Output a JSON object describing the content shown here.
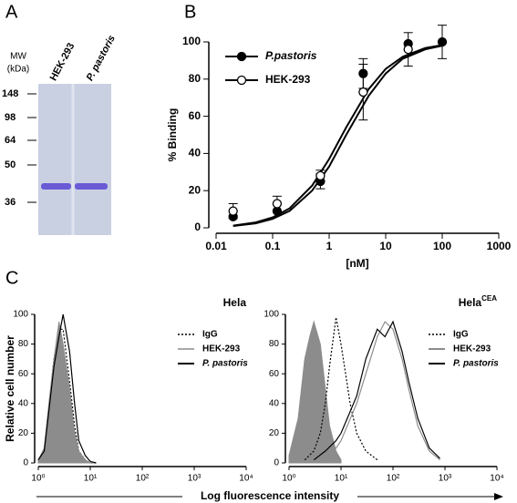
{
  "panel_labels": [
    "A",
    "B",
    "C"
  ],
  "gel": {
    "mw_label": "MW",
    "unit_label": "(kDa)",
    "markers": [
      "148",
      "98",
      "64",
      "50",
      "36"
    ],
    "lanes": [
      "HEK-293",
      "P. pastoris"
    ]
  },
  "shared_x_label": "Log fluorescence intensity",
  "chart_data": [
    {
      "type": "scatter",
      "xscale": "log",
      "xlabel": "[nM]",
      "ylabel": "% Binding",
      "xlim": [
        0.01,
        1000
      ],
      "xticks": [
        0.01,
        0.1,
        1,
        10,
        100,
        1000
      ],
      "ylim": [
        0,
        100
      ],
      "yticks": [
        0,
        20,
        40,
        60,
        80,
        100
      ],
      "legend": "upper left",
      "series": [
        {
          "name": "P.pastoris",
          "italic": true,
          "color": "#000000",
          "marker": "filled",
          "x": [
            0.02,
            0.12,
            0.7,
            4,
            25,
            100
          ],
          "values": [
            6,
            9,
            25,
            83,
            99,
            100
          ],
          "errors": [
            null,
            null,
            4,
            8,
            null,
            9
          ],
          "fit": {
            "x": [
              0.02,
              0.05,
              0.1,
              0.2,
              0.5,
              1,
              2,
              5,
              10,
              20,
              50,
              100
            ],
            "values": [
              1.2,
              2.9,
              5.6,
              10.5,
              22.7,
              37,
              54,
              74.6,
              85.5,
              92,
              96.7,
              98.3
            ]
          }
        },
        {
          "name": "HEK-293",
          "italic": false,
          "color": "#000000",
          "marker": "open",
          "x": [
            0.02,
            0.12,
            0.7,
            4,
            25
          ],
          "values": [
            9,
            13,
            28,
            73,
            96
          ],
          "errors": [
            4,
            4,
            3,
            15,
            9
          ],
          "fit": {
            "x": [
              0.02,
              0.05,
              0.1,
              0.2,
              0.5,
              1,
              2,
              5,
              10,
              20,
              50,
              100
            ],
            "values": [
              1,
              2.4,
              4.8,
              9.1,
              20,
              33,
              50,
              71,
              83,
              91,
              96,
              98
            ]
          }
        }
      ]
    },
    {
      "type": "line",
      "xscale": "log",
      "title": "Hela",
      "ylabel": "Relative cell number",
      "xlim": [
        1,
        10000
      ],
      "xticks": [
        {
          "value": 1,
          "label": "10⁰"
        },
        {
          "value": 10,
          "label": "10¹"
        },
        {
          "value": 100,
          "label": "10²"
        },
        {
          "value": 1000,
          "label": "10³"
        },
        {
          "value": 10000,
          "label": "10⁴"
        }
      ],
      "ylim": [
        0,
        100
      ],
      "yticks": [
        0,
        20,
        40,
        60,
        80,
        100
      ],
      "legend": "upper right",
      "series": [
        {
          "name": "IgG",
          "italic": false,
          "color": "#000000",
          "style": "dotted",
          "x": [
            1,
            1.3,
            1.6,
            2,
            2.5,
            3,
            4,
            5,
            6,
            8,
            10,
            13
          ],
          "values": [
            2,
            9,
            38,
            70,
            90,
            90,
            55,
            25,
            8,
            2,
            0,
            0
          ]
        },
        {
          "name": "HEK-293",
          "italic": false,
          "color": "#8c8c8c",
          "style": "fill",
          "x": [
            1,
            1.3,
            1.6,
            2,
            2.5,
            3,
            4,
            5,
            6,
            8,
            10,
            13
          ],
          "values": [
            2,
            10,
            40,
            70,
            95,
            80,
            50,
            20,
            8,
            2,
            0,
            0
          ]
        },
        {
          "name": "P. pastoris",
          "italic": true,
          "color": "#000000",
          "style": "solid",
          "x": [
            1,
            1.3,
            1.6,
            2,
            2.5,
            3,
            4,
            5,
            6,
            8,
            10,
            13
          ],
          "values": [
            2,
            8,
            35,
            65,
            85,
            100,
            75,
            40,
            15,
            5,
            1,
            0
          ]
        }
      ]
    },
    {
      "type": "line",
      "xscale": "log",
      "title": "Hela",
      "title_sup": "CEA",
      "xlim": [
        1,
        10000
      ],
      "xticks": [
        {
          "value": 1,
          "label": "10⁰"
        },
        {
          "value": 10,
          "label": "10¹"
        },
        {
          "value": 100,
          "label": "10²"
        },
        {
          "value": 1000,
          "label": "10³"
        },
        {
          "value": 10000,
          "label": "10⁴"
        }
      ],
      "ylim": [
        0,
        100
      ],
      "yticks": [
        0,
        20,
        40,
        60,
        80,
        100
      ],
      "legend": "upper right",
      "series": [
        {
          "color": "#8c8c8c",
          "style": "fill",
          "x": [
            1,
            1.5,
            2,
            2.5,
            3,
            4,
            5,
            6,
            8,
            10
          ],
          "values": [
            5,
            30,
            70,
            85,
            95,
            80,
            50,
            25,
            8,
            2
          ]
        },
        {
          "name": "IgG",
          "italic": false,
          "color": "#000000",
          "style": "dotted",
          "x": [
            2,
            3,
            4,
            5,
            6,
            8,
            10,
            15,
            20,
            30,
            50
          ],
          "values": [
            2,
            8,
            20,
            40,
            65,
            98,
            80,
            40,
            20,
            8,
            2
          ]
        },
        {
          "name": "HEK-293",
          "italic": false,
          "color": "#8c8c8c",
          "style": "solid",
          "x": [
            3,
            5,
            8,
            10,
            20,
            30,
            50,
            70,
            100,
            150,
            200,
            300,
            500,
            800
          ],
          "values": [
            2,
            5,
            10,
            15,
            40,
            60,
            85,
            95,
            90,
            70,
            50,
            25,
            8,
            2
          ]
        },
        {
          "name": "P. pastoris",
          "italic": true,
          "color": "#000000",
          "style": "solid",
          "x": [
            3,
            5,
            8,
            10,
            20,
            30,
            50,
            70,
            100,
            150,
            200,
            300,
            500,
            800
          ],
          "values": [
            2,
            8,
            15,
            20,
            45,
            70,
            90,
            85,
            95,
            75,
            55,
            30,
            10,
            3
          ]
        }
      ]
    }
  ]
}
